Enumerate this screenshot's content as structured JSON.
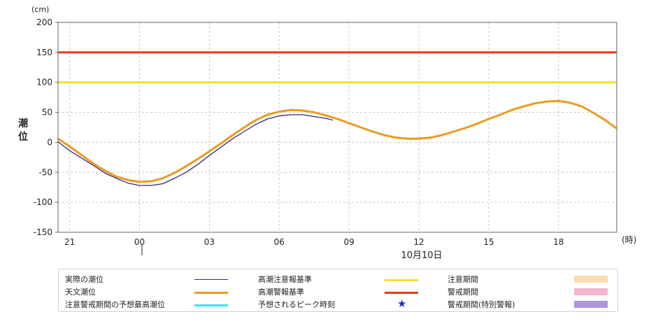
{
  "chart_data": {
    "type": "line",
    "y_unit": "(cm)",
    "ylabel_chars": [
      "潮",
      "位"
    ],
    "ylim": [
      -150,
      200
    ],
    "yticks": [
      200,
      150,
      100,
      50,
      0,
      -50,
      -100,
      -150
    ],
    "x_unit": "(時)",
    "date_label": "10月10日",
    "xticks": [
      {
        "hour": 21,
        "label": "21"
      },
      {
        "hour": 24,
        "label": "00"
      },
      {
        "hour": 27,
        "label": "03"
      },
      {
        "hour": 30,
        "label": "06"
      },
      {
        "hour": 33,
        "label": "09"
      },
      {
        "hour": 36,
        "label": "12"
      },
      {
        "hour": 39,
        "label": "15"
      },
      {
        "hour": 42,
        "label": "18"
      }
    ],
    "xlim_hours": [
      20.5,
      44.5
    ],
    "thresholds": [
      {
        "name": "高潮警報基準",
        "value": 150,
        "color": "#e8381b"
      },
      {
        "name": "高潮注意報基準",
        "value": 100,
        "color": "#f2e41e"
      }
    ],
    "series": [
      {
        "name": "天文潮位",
        "color": "#eb9b1f",
        "x": [
          20.5,
          21.0,
          21.5,
          22.0,
          22.5,
          23.0,
          23.5,
          24.0,
          24.5,
          25.0,
          25.5,
          26.0,
          26.5,
          27.0,
          27.5,
          28.0,
          28.5,
          29.0,
          29.5,
          30.0,
          30.5,
          31.0,
          31.5,
          32.0,
          32.5,
          33.0,
          33.5,
          34.0,
          34.5,
          35.0,
          35.5,
          36.0,
          36.5,
          37.0,
          37.5,
          38.0,
          38.5,
          39.0,
          39.5,
          40.0,
          40.5,
          41.0,
          41.5,
          42.0,
          42.5,
          43.0,
          43.5,
          44.0,
          44.5
        ],
        "y": [
          6,
          -7,
          -21,
          -35,
          -47,
          -57,
          -63,
          -66,
          -65,
          -60,
          -51,
          -40,
          -28,
          -15,
          -2,
          12,
          25,
          37,
          46,
          51,
          54,
          53,
          50,
          45,
          39,
          32,
          25,
          18,
          12,
          8,
          6,
          6,
          8,
          12,
          18,
          24,
          31,
          39,
          46,
          54,
          60,
          65,
          68,
          69,
          66,
          60,
          49,
          37,
          23
        ]
      },
      {
        "name": "実際の潮位",
        "color": "#3b2384",
        "x": [
          20.5,
          21.0,
          21.5,
          22.0,
          22.5,
          23.0,
          23.5,
          24.0,
          24.5,
          25.0,
          25.5,
          26.0,
          26.5,
          27.0,
          27.5,
          28.0,
          28.5,
          29.0,
          29.5,
          30.0,
          30.5,
          31.0,
          31.5,
          32.0,
          32.3
        ],
        "y": [
          1,
          -14,
          -26,
          -38,
          -51,
          -60,
          -68,
          -72,
          -72,
          -69,
          -60,
          -50,
          -37,
          -22,
          -8,
          6,
          18,
          30,
          39,
          44,
          46,
          46,
          43,
          40,
          37
        ]
      }
    ]
  },
  "legend": {
    "items": [
      {
        "label": "実際の潮位",
        "symbol": "line",
        "color": "#3b2384"
      },
      {
        "label": "天文潮位",
        "symbol": "line",
        "color": "#eb9b1f"
      },
      {
        "label": "注意警戒期間の予想最高潮位",
        "symbol": "line",
        "color": "#33e6f0"
      },
      {
        "label": "高潮注意報基準",
        "symbol": "line",
        "color": "#f2e41e"
      },
      {
        "label": "高潮警報基準",
        "symbol": "line",
        "color": "#e8381b"
      },
      {
        "label": "予想されるピーク時刻",
        "symbol": "star",
        "color": "#1a2ad4"
      },
      {
        "label": "注意期間",
        "symbol": "box",
        "color": "#fcdcb4"
      },
      {
        "label": "警戒期間",
        "symbol": "box",
        "color": "#f7b4cf"
      },
      {
        "label": "警戒期間(特別警報)",
        "symbol": "box",
        "color": "#a998dd"
      }
    ]
  }
}
